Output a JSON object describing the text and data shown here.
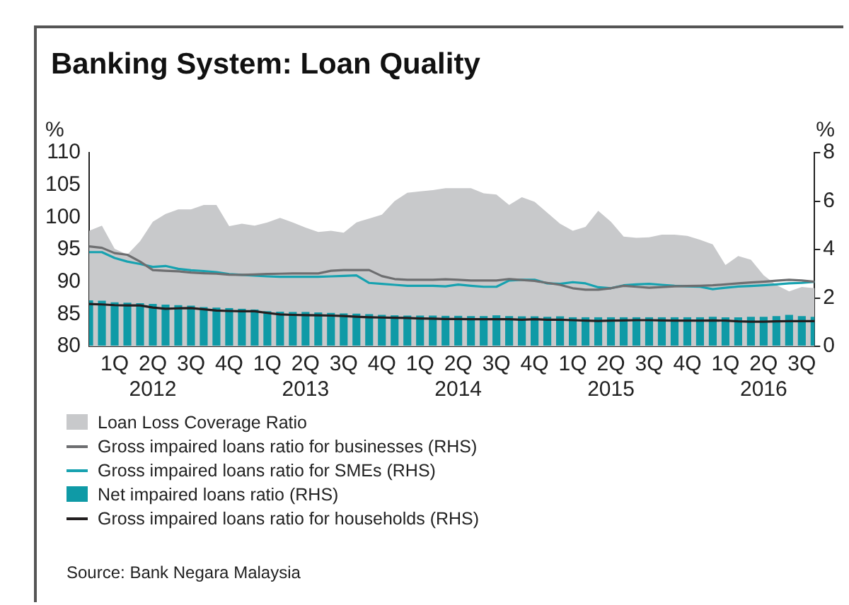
{
  "chart_data": {
    "type": "line",
    "title": "Banking System: Loan Quality",
    "ylabel": "%",
    "y2label": "%",
    "categories": [
      null,
      null,
      "1Q",
      null,
      null,
      "2Q 2012",
      null,
      null,
      "3Q",
      null,
      null,
      "4Q",
      null,
      null,
      "1Q",
      null,
      null,
      "2Q 2013",
      null,
      null,
      "3Q",
      null,
      null,
      "4Q",
      null,
      null,
      "1Q",
      null,
      null,
      "2Q 2014",
      null,
      null,
      "3Q",
      null,
      null,
      "4Q",
      null,
      null,
      "1Q",
      null,
      null,
      "2Q 2015",
      null,
      null,
      "3Q",
      null,
      null,
      "4Q",
      null,
      null,
      "1Q",
      null,
      null,
      "2Q 2016",
      null,
      null,
      "3Q",
      null
    ],
    "series": [
      {
        "name": "Loan Loss Coverage Ratio",
        "type": "area",
        "color": "#c8c9cb",
        "values": [
          97.9,
          98.7,
          95.1,
          94.2,
          96.3,
          99.3,
          100.5,
          101.2,
          101.2,
          101.9,
          101.9,
          98.6,
          99.0,
          98.7,
          99.2,
          99.9,
          99.2,
          98.4,
          97.7,
          97.9,
          97.6,
          99.2,
          99.8,
          100.4,
          102.5,
          103.8,
          104.0,
          104.2,
          104.5,
          104.5,
          104.5,
          103.7,
          103.5,
          101.9,
          103.1,
          102.4,
          100.7,
          99.0,
          97.9,
          98.5,
          101.0,
          99.3,
          97.0,
          96.8,
          96.9,
          97.3,
          97.3,
          97.1,
          96.5,
          95.8,
          92.6,
          94.0,
          93.4,
          91.0,
          89.5,
          88.5,
          89.2,
          89.0
        ]
      },
      {
        "name": "Gross impaired loans ratio for businesses (RHS)",
        "axis": "y2",
        "color": "#6d6e70",
        "values": [
          4.13,
          4.07,
          3.85,
          3.78,
          3.5,
          3.15,
          3.12,
          3.1,
          3.05,
          3.02,
          3.0,
          2.96,
          2.95,
          2.97,
          2.99,
          3.0,
          3.01,
          3.01,
          3.01,
          3.12,
          3.15,
          3.15,
          3.15,
          2.9,
          2.78,
          2.75,
          2.75,
          2.75,
          2.77,
          2.75,
          2.72,
          2.72,
          2.72,
          2.78,
          2.74,
          2.7,
          2.62,
          2.54,
          2.4,
          2.34,
          2.34,
          2.4,
          2.5,
          2.46,
          2.42,
          2.45,
          2.48,
          2.49,
          2.5,
          2.52,
          2.56,
          2.6,
          2.64,
          2.67,
          2.71,
          2.75,
          2.72,
          2.67
        ]
      },
      {
        "name": "Gross impaired loans ratio for SMEs (RHS)",
        "axis": "y2",
        "color": "#17a2b0",
        "values": [
          3.89,
          3.89,
          3.65,
          3.5,
          3.4,
          3.28,
          3.32,
          3.2,
          3.14,
          3.11,
          3.06,
          2.98,
          2.95,
          2.92,
          2.89,
          2.87,
          2.87,
          2.87,
          2.87,
          2.89,
          2.91,
          2.93,
          2.62,
          2.58,
          2.54,
          2.5,
          2.5,
          2.5,
          2.48,
          2.55,
          2.5,
          2.46,
          2.46,
          2.72,
          2.75,
          2.75,
          2.6,
          2.58,
          2.65,
          2.6,
          2.44,
          2.4,
          2.52,
          2.56,
          2.58,
          2.54,
          2.5,
          2.48,
          2.46,
          2.36,
          2.42,
          2.47,
          2.49,
          2.52,
          2.56,
          2.6,
          2.62,
          2.67
        ]
      },
      {
        "name": "Net impaired loans ratio (RHS)",
        "type": "bar",
        "axis": "y2",
        "color": "#0f9aa6",
        "values": [
          1.9,
          1.88,
          1.82,
          1.8,
          1.78,
          1.75,
          1.72,
          1.7,
          1.68,
          1.62,
          1.6,
          1.58,
          1.55,
          1.52,
          1.45,
          1.43,
          1.42,
          1.42,
          1.4,
          1.38,
          1.36,
          1.35,
          1.33,
          1.3,
          1.28,
          1.27,
          1.27,
          1.27,
          1.26,
          1.26,
          1.25,
          1.25,
          1.28,
          1.25,
          1.24,
          1.24,
          1.22,
          1.24,
          1.2,
          1.2,
          1.2,
          1.2,
          1.2,
          1.2,
          1.2,
          1.2,
          1.2,
          1.2,
          1.2,
          1.22,
          1.2,
          1.2,
          1.22,
          1.22,
          1.25,
          1.3,
          1.25,
          1.22
        ]
      },
      {
        "name": "Gross impaired loans ratio for households (RHS)",
        "axis": "y2",
        "color": "#231f20",
        "values": [
          1.75,
          1.73,
          1.7,
          1.69,
          1.69,
          1.6,
          1.55,
          1.57,
          1.58,
          1.53,
          1.48,
          1.46,
          1.45,
          1.45,
          1.38,
          1.32,
          1.3,
          1.29,
          1.28,
          1.27,
          1.25,
          1.22,
          1.2,
          1.19,
          1.18,
          1.17,
          1.15,
          1.14,
          1.13,
          1.13,
          1.12,
          1.12,
          1.12,
          1.12,
          1.1,
          1.12,
          1.1,
          1.1,
          1.08,
          1.06,
          1.05,
          1.06,
          1.07,
          1.08,
          1.08,
          1.07,
          1.06,
          1.06,
          1.06,
          1.07,
          1.06,
          1.03,
          1.02,
          1.02,
          1.03,
          1.04,
          1.04,
          1.04
        ]
      }
    ],
    "ylim": [
      80,
      110
    ],
    "yticks": [
      80,
      85,
      90,
      95,
      100,
      105,
      110
    ],
    "y2lim": [
      0,
      8
    ],
    "y2ticks": [
      0,
      2,
      4,
      6,
      8
    ],
    "grid": false,
    "legend": "bottom",
    "marker": "none",
    "annotations": [
      "Source: Bank Negara Malaysia"
    ]
  }
}
